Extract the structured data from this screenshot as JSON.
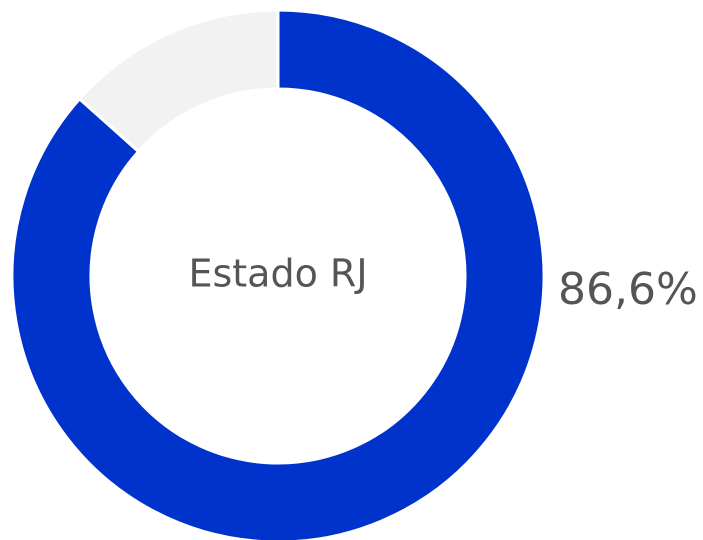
{
  "chart_data": {
    "type": "pie",
    "donut": true,
    "center_label": "Estado RJ",
    "values": [
      86.6,
      13.4
    ],
    "value_labels": [
      "86,6%",
      null
    ],
    "colors": [
      "#0033cc",
      "#f2f2f2"
    ]
  }
}
